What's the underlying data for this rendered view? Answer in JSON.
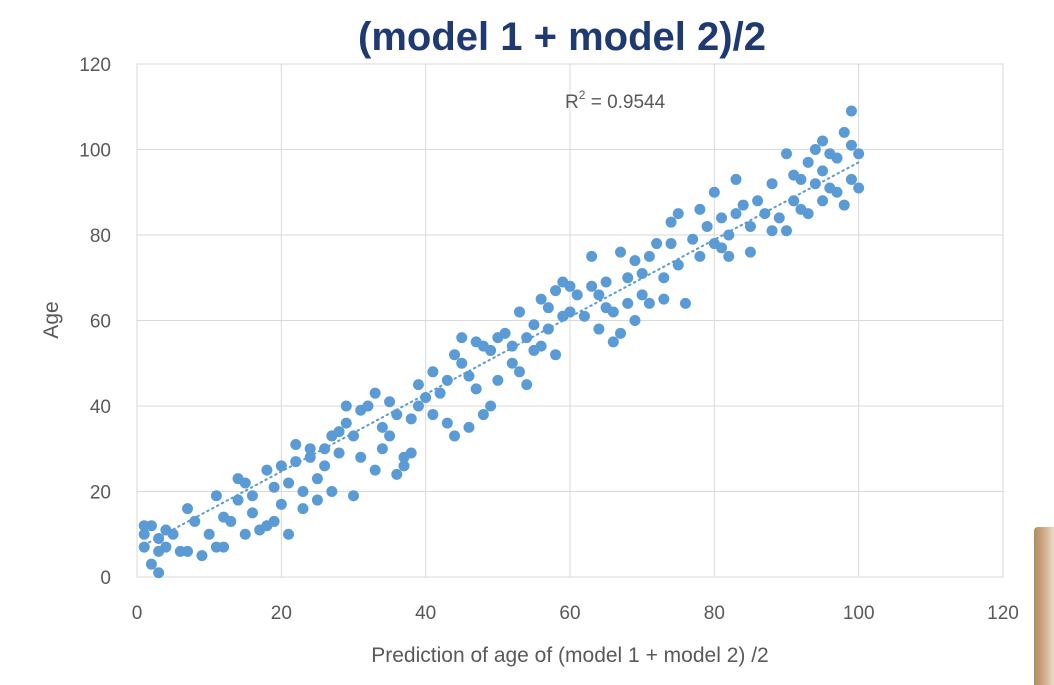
{
  "chart_data": {
    "type": "scatter",
    "title": "(model 1 + model 2)/2",
    "xlabel": "Prediction of age of (model 1 + model 2) /2",
    "ylabel": "Age",
    "xlim": [
      0,
      120
    ],
    "ylim": [
      0,
      120
    ],
    "xticks": [
      "0",
      "20",
      "40",
      "60",
      "80",
      "100",
      "120"
    ],
    "yticks": [
      "0",
      "20",
      "40",
      "60",
      "80",
      "100",
      "120"
    ],
    "grid": true,
    "legend": "none",
    "annotation": {
      "base": "R",
      "sup": "2",
      "rest": " = 0.9544"
    },
    "trendline": {
      "style": "dotted",
      "x": [
        1,
        100
      ],
      "y": [
        7.5,
        97
      ]
    },
    "colors": {
      "points": "#5b9bd5",
      "title": "#1f3a73",
      "grid": "#d9d9d9",
      "text": "#595959"
    },
    "points": [
      [
        1,
        7
      ],
      [
        1,
        10
      ],
      [
        1,
        12
      ],
      [
        2,
        12
      ],
      [
        2,
        3
      ],
      [
        3,
        1
      ],
      [
        3,
        6
      ],
      [
        3,
        9
      ],
      [
        4,
        7
      ],
      [
        4,
        11
      ],
      [
        5,
        10
      ],
      [
        6,
        6
      ],
      [
        7,
        6
      ],
      [
        7,
        16
      ],
      [
        8,
        13
      ],
      [
        9,
        5
      ],
      [
        10,
        10
      ],
      [
        11,
        7
      ],
      [
        11,
        19
      ],
      [
        12,
        14
      ],
      [
        12,
        7
      ],
      [
        13,
        13
      ],
      [
        14,
        23
      ],
      [
        14,
        18
      ],
      [
        15,
        22
      ],
      [
        15,
        10
      ],
      [
        16,
        19
      ],
      [
        16,
        15
      ],
      [
        17,
        11
      ],
      [
        18,
        12
      ],
      [
        18,
        25
      ],
      [
        19,
        21
      ],
      [
        19,
        13
      ],
      [
        20,
        26
      ],
      [
        20,
        17
      ],
      [
        21,
        10
      ],
      [
        21,
        22
      ],
      [
        22,
        31
      ],
      [
        22,
        27
      ],
      [
        23,
        20
      ],
      [
        23,
        16
      ],
      [
        24,
        30
      ],
      [
        24,
        28
      ],
      [
        25,
        23
      ],
      [
        25,
        18
      ],
      [
        26,
        30
      ],
      [
        26,
        26
      ],
      [
        27,
        33
      ],
      [
        27,
        20
      ],
      [
        28,
        34
      ],
      [
        28,
        29
      ],
      [
        29,
        40
      ],
      [
        29,
        36
      ],
      [
        30,
        33
      ],
      [
        30,
        19
      ],
      [
        31,
        39
      ],
      [
        31,
        28
      ],
      [
        32,
        40
      ],
      [
        33,
        43
      ],
      [
        33,
        25
      ],
      [
        34,
        35
      ],
      [
        34,
        30
      ],
      [
        35,
        33
      ],
      [
        35,
        41
      ],
      [
        36,
        24
      ],
      [
        36,
        38
      ],
      [
        37,
        28
      ],
      [
        37,
        26
      ],
      [
        38,
        29
      ],
      [
        38,
        37
      ],
      [
        39,
        45
      ],
      [
        39,
        40
      ],
      [
        40,
        42
      ],
      [
        41,
        48
      ],
      [
        41,
        38
      ],
      [
        42,
        43
      ],
      [
        43,
        36
      ],
      [
        43,
        46
      ],
      [
        44,
        52
      ],
      [
        44,
        33
      ],
      [
        45,
        56
      ],
      [
        45,
        50
      ],
      [
        46,
        47
      ],
      [
        46,
        35
      ],
      [
        47,
        55
      ],
      [
        47,
        44
      ],
      [
        48,
        38
      ],
      [
        48,
        54
      ],
      [
        49,
        40
      ],
      [
        49,
        53
      ],
      [
        50,
        56
      ],
      [
        50,
        46
      ],
      [
        51,
        57
      ],
      [
        52,
        50
      ],
      [
        52,
        54
      ],
      [
        53,
        62
      ],
      [
        53,
        48
      ],
      [
        54,
        56
      ],
      [
        54,
        45
      ],
      [
        55,
        59
      ],
      [
        55,
        53
      ],
      [
        56,
        65
      ],
      [
        56,
        54
      ],
      [
        57,
        63
      ],
      [
        57,
        58
      ],
      [
        58,
        67
      ],
      [
        58,
        52
      ],
      [
        59,
        69
      ],
      [
        59,
        61
      ],
      [
        60,
        68
      ],
      [
        60,
        62
      ],
      [
        61,
        66
      ],
      [
        62,
        61
      ],
      [
        63,
        75
      ],
      [
        63,
        68
      ],
      [
        64,
        66
      ],
      [
        64,
        58
      ],
      [
        65,
        63
      ],
      [
        65,
        69
      ],
      [
        66,
        55
      ],
      [
        66,
        62
      ],
      [
        67,
        76
      ],
      [
        67,
        57
      ],
      [
        68,
        70
      ],
      [
        68,
        64
      ],
      [
        69,
        74
      ],
      [
        69,
        60
      ],
      [
        70,
        66
      ],
      [
        70,
        71
      ],
      [
        71,
        75
      ],
      [
        71,
        64
      ],
      [
        72,
        78
      ],
      [
        73,
        65
      ],
      [
        73,
        70
      ],
      [
        74,
        83
      ],
      [
        74,
        78
      ],
      [
        75,
        73
      ],
      [
        75,
        85
      ],
      [
        76,
        64
      ],
      [
        77,
        79
      ],
      [
        78,
        75
      ],
      [
        78,
        86
      ],
      [
        79,
        82
      ],
      [
        80,
        90
      ],
      [
        80,
        78
      ],
      [
        81,
        84
      ],
      [
        81,
        77
      ],
      [
        82,
        80
      ],
      [
        82,
        75
      ],
      [
        83,
        93
      ],
      [
        83,
        85
      ],
      [
        84,
        87
      ],
      [
        85,
        76
      ],
      [
        85,
        82
      ],
      [
        86,
        88
      ],
      [
        87,
        85
      ],
      [
        88,
        92
      ],
      [
        88,
        81
      ],
      [
        89,
        84
      ],
      [
        90,
        99
      ],
      [
        90,
        81
      ],
      [
        91,
        88
      ],
      [
        91,
        94
      ],
      [
        92,
        86
      ],
      [
        92,
        93
      ],
      [
        93,
        97
      ],
      [
        93,
        85
      ],
      [
        94,
        100
      ],
      [
        94,
        92
      ],
      [
        95,
        102
      ],
      [
        95,
        88
      ],
      [
        96,
        99
      ],
      [
        96,
        91
      ],
      [
        97,
        90
      ],
      [
        97,
        98
      ],
      [
        98,
        104
      ],
      [
        98,
        87
      ],
      [
        99,
        109
      ],
      [
        99,
        101
      ],
      [
        100,
        99
      ],
      [
        100,
        91
      ],
      [
        99,
        93
      ],
      [
        95,
        95
      ]
    ]
  }
}
